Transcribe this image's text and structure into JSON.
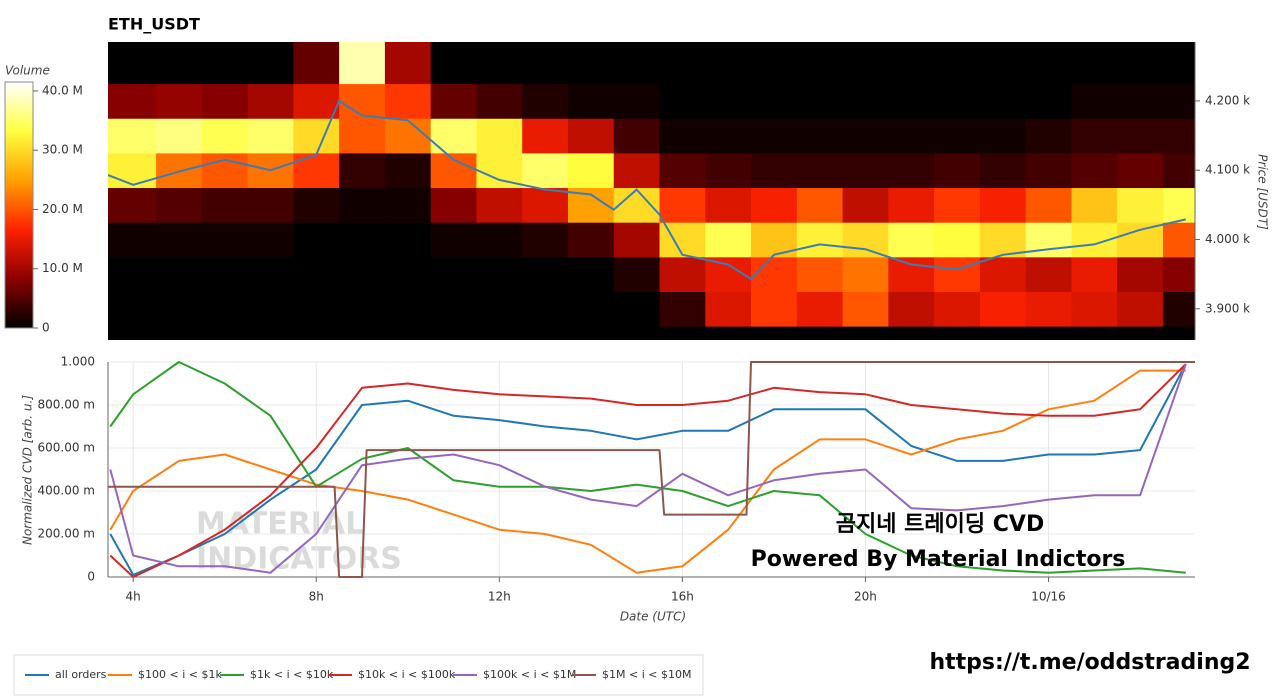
{
  "chart_data": [
    {
      "type": "heatmap",
      "title": "ETH_USDT",
      "z_label": "Volume",
      "y_label": "Price [USDT]",
      "colorscale": [
        "#000000",
        "#8b0000",
        "#ff2200",
        "#ffa000",
        "#ffff40",
        "#ffffff"
      ],
      "zlim": [
        0,
        41.5
      ],
      "zticks": [
        0,
        {
          "value": 10,
          "label": "10.0 M"
        },
        {
          "value": 20,
          "label": "20.0 M"
        },
        {
          "value": 30,
          "label": "30.0 M"
        },
        {
          "value": 40,
          "label": "40.0 M"
        }
      ],
      "xlim": [
        3.45,
        27.2
      ],
      "ylim": [
        3855,
        4285
      ],
      "yticks": [
        {
          "value": 3900,
          "label": "3.900 k"
        },
        {
          "value": 4000,
          "label": "4.000 k"
        },
        {
          "value": 4100,
          "label": "4.100 k"
        },
        {
          "value": 4200,
          "label": "4.200 k"
        }
      ],
      "x_edges": [
        3.45,
        4.5,
        5.5,
        6.5,
        7.5,
        8.5,
        9.5,
        10.5,
        11.5,
        12.5,
        13.5,
        14.5,
        15.5,
        16.5,
        17.5,
        18.5,
        19.5,
        20.5,
        21.5,
        22.5,
        23.5,
        24.5,
        25.5,
        26.5,
        27.2
      ],
      "y_edges": [
        3855,
        3875,
        3925,
        3975,
        4025,
        4075,
        4125,
        4175,
        4225,
        4285
      ],
      "z": [
        [
          0,
          0,
          0,
          0,
          0,
          0,
          0,
          0,
          0,
          0,
          0,
          0,
          0,
          0,
          0,
          0,
          0,
          0,
          0,
          0,
          0,
          0,
          0,
          0
        ],
        [
          0,
          0,
          0,
          0,
          0,
          0,
          0,
          0,
          0,
          0,
          0,
          0,
          3,
          14,
          18,
          15,
          20,
          12,
          14,
          16,
          15,
          14,
          12,
          2
        ],
        [
          0,
          0,
          0,
          0,
          0,
          0,
          0,
          0,
          0,
          0,
          0,
          2,
          12,
          15,
          18,
          20,
          22,
          15,
          18,
          14,
          12,
          15,
          10,
          8
        ],
        [
          1,
          1,
          1,
          1,
          0,
          0,
          0,
          1,
          1,
          2,
          4,
          10,
          30,
          34,
          28,
          32,
          30,
          34,
          33,
          30,
          35,
          32,
          30,
          20
        ],
        [
          6,
          5,
          4,
          4,
          2,
          1,
          1,
          8,
          12,
          14,
          25,
          30,
          18,
          14,
          16,
          20,
          12,
          15,
          18,
          16,
          20,
          28,
          32,
          34
        ],
        [
          32,
          22,
          20,
          22,
          18,
          3,
          2,
          20,
          32,
          35,
          33,
          12,
          5,
          4,
          3,
          3,
          3,
          3,
          4,
          3,
          4,
          5,
          6,
          4
        ],
        [
          35,
          36,
          34,
          35,
          30,
          20,
          22,
          35,
          32,
          15,
          12,
          4,
          1,
          1,
          1,
          1,
          1,
          1,
          1,
          1,
          2,
          3,
          3,
          3
        ],
        [
          8,
          9,
          8,
          10,
          14,
          20,
          18,
          6,
          4,
          2,
          1,
          1,
          0,
          0,
          0,
          0,
          0,
          0,
          0,
          0,
          0,
          1,
          1,
          1
        ],
        [
          0,
          0,
          0,
          0,
          6,
          38,
          10,
          0,
          0,
          0,
          0,
          0,
          0,
          0,
          0,
          0,
          0,
          0,
          0,
          0,
          0,
          0,
          0,
          0
        ]
      ],
      "series": [
        {
          "color": "#3a7db5",
          "x": [
            3.45,
            4,
            5,
            6,
            7,
            8,
            8.5,
            9,
            10,
            11,
            12,
            13,
            14,
            14.5,
            15,
            15.5,
            16,
            17,
            17.5,
            18,
            19,
            20,
            21,
            22,
            23,
            24,
            25,
            26,
            27
          ],
          "values": [
            4093,
            4079,
            4098,
            4115,
            4100,
            4122,
            4200,
            4179,
            4172,
            4115,
            4086,
            4072,
            4065,
            4043,
            4072,
            4036,
            3978,
            3964,
            3943,
            3978,
            3993,
            3986,
            3964,
            3957,
            3978,
            3986,
            3993,
            4014,
            4029
          ]
        }
      ]
    },
    {
      "type": "line",
      "x_label": "Date (UTC)",
      "y_label": "Normalized CVD [arb. u.]",
      "xlim": [
        3.45,
        27.2
      ],
      "xticks": [
        {
          "value": 4,
          "label": "4h"
        },
        {
          "value": 8,
          "label": "8h"
        },
        {
          "value": 12,
          "label": "12h"
        },
        {
          "value": 16,
          "label": "16h"
        },
        {
          "value": 20,
          "label": "20h"
        },
        {
          "value": 24,
          "label": "10/16"
        }
      ],
      "ylim": [
        0,
        1
      ],
      "yticks": [
        0,
        {
          "value": 0.2,
          "label": "200.00 m"
        },
        {
          "value": 0.4,
          "label": "400.00 m"
        },
        {
          "value": 0.6,
          "label": "600.00 m"
        },
        {
          "value": 0.8,
          "label": "800.00 m"
        },
        {
          "value": 1,
          "label": "1.000"
        }
      ],
      "grid": true,
      "legend": "bottom-left",
      "x": [
        3.5,
        4,
        5,
        6,
        7,
        8,
        9,
        10,
        11,
        12,
        13,
        14,
        15,
        16,
        17,
        18,
        19,
        20,
        21,
        22,
        23,
        24,
        25,
        26,
        27
      ],
      "series": [
        {
          "name": "all orders",
          "color": "#1f77b4",
          "values": [
            0.2,
            0.01,
            0.1,
            0.2,
            0.36,
            0.5,
            0.8,
            0.82,
            0.75,
            0.73,
            0.7,
            0.68,
            0.64,
            0.68,
            0.68,
            0.78,
            0.78,
            0.78,
            0.61,
            0.54,
            0.54,
            0.57,
            0.57,
            0.59,
            0.99
          ]
        },
        {
          "name": "$100 < i < $1k",
          "color": "#ff7f0e",
          "values": [
            0.22,
            0.4,
            0.54,
            0.57,
            0.5,
            0.43,
            0.4,
            0.36,
            0.29,
            0.22,
            0.2,
            0.15,
            0.02,
            0.05,
            0.22,
            0.5,
            0.64,
            0.64,
            0.57,
            0.64,
            0.68,
            0.78,
            0.82,
            0.96,
            0.96
          ]
        },
        {
          "name": "$1k < i < $10k",
          "color": "#2ca02c",
          "values": [
            0.7,
            0.85,
            1.0,
            0.9,
            0.75,
            0.42,
            0.55,
            0.6,
            0.45,
            0.42,
            0.42,
            0.4,
            0.43,
            0.4,
            0.33,
            0.4,
            0.38,
            0.2,
            0.1,
            0.05,
            0.03,
            0.02,
            0.03,
            0.04,
            0.02
          ]
        },
        {
          "name": "$10k < i < $100k",
          "color": "#d62728",
          "values": [
            0.1,
            0.0,
            0.1,
            0.22,
            0.38,
            0.6,
            0.88,
            0.9,
            0.87,
            0.85,
            0.84,
            0.83,
            0.8,
            0.8,
            0.82,
            0.88,
            0.86,
            0.85,
            0.8,
            0.78,
            0.76,
            0.75,
            0.75,
            0.78,
            0.99
          ]
        },
        {
          "name": "$100k < i < $1M",
          "color": "#9467bd",
          "values": [
            0.5,
            0.1,
            0.05,
            0.05,
            0.02,
            0.2,
            0.52,
            0.55,
            0.57,
            0.52,
            0.42,
            0.36,
            0.33,
            0.48,
            0.38,
            0.45,
            0.48,
            0.5,
            0.32,
            0.31,
            0.33,
            0.36,
            0.38,
            0.38,
            0.99
          ]
        },
        {
          "name": "$1M < i < $10M",
          "color": "#8c564b",
          "x": [
            3.45,
            8.4,
            8.5,
            9.0,
            9.1,
            15.5,
            15.6,
            17.4,
            17.5,
            27.2
          ],
          "values": [
            0.42,
            0.42,
            0,
            0,
            0.59,
            0.59,
            0.29,
            0.29,
            1,
            1
          ]
        }
      ]
    }
  ],
  "annotations": {
    "watermark": [
      "MATERIAL",
      "INDICATORS"
    ],
    "caption": "곰지네 트레이딩 CVD",
    "credit": "Powered By Material Indictors",
    "link": "https://t.me/oddstrading2"
  }
}
